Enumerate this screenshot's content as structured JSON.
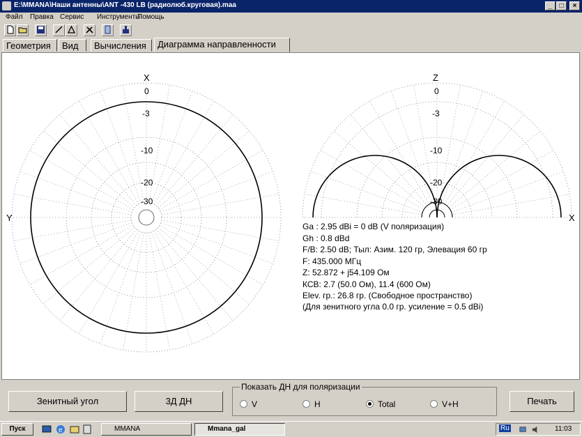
{
  "window": {
    "title": "E:\\MMANA\\Наши антенны\\ANT -430 LB (радиолюб.круговая).maa",
    "minimize_glyph": "_",
    "maximize_glyph": "□",
    "close_glyph": "×"
  },
  "menu": [
    "Файл",
    "Правка",
    "Сервис",
    "Инструменты",
    "Помощь"
  ],
  "toolbar_icons": [
    "new-file-icon",
    "open-folder-icon",
    "save-icon",
    "draw-line-icon",
    "triangle-icon",
    "tools-icon",
    "document-icon",
    "run-icon"
  ],
  "tabs": [
    "Геометрия",
    "Вид",
    "Вычисления",
    "Диаграмма направленности"
  ],
  "active_tab": "Диаграмма направленности",
  "diagram": {
    "azimuth": {
      "axis_top": "X",
      "axis_left": "Y",
      "scale_labels": [
        "0",
        "-3",
        "-10",
        "-20",
        "-30"
      ]
    },
    "elevation": {
      "axis_top": "Z",
      "axis_right": "X",
      "scale_labels": [
        "0",
        "-3",
        "-10",
        "-20",
        "-30"
      ]
    },
    "info": [
      "Ga : 2.95 dBi = 0 dB  (V поляризация)",
      "Gh : 0.8 dBd",
      "F/B: 2.50 dB; Тыл: Азим. 120 гр, Элевация 60 гр",
      "F: 435.000 МГц",
      "Z: 52.872 + j54.109 Ом",
      "КСВ: 2.7 (50.0 Ом), 11.4 (600 Ом)",
      "Elev. гр.: 26.8 гр. (Свободное пространство)",
      "(Для зенитного угла 0.0 гр. усиление = 0.5 dBi)"
    ]
  },
  "bottom": {
    "zenith_button": "Зенитный угол",
    "button_3d": "3Д  ДН",
    "polarization_group": "Показать ДН для поляризации",
    "radios": [
      {
        "label": "V",
        "checked": false
      },
      {
        "label": "H",
        "checked": false
      },
      {
        "label": "Total",
        "checked": true
      },
      {
        "label": "V+H",
        "checked": false
      }
    ],
    "print_button": "Печать"
  },
  "taskbar": {
    "start": "Пуск",
    "tasks": [
      {
        "label": "MMANA",
        "active": false
      },
      {
        "label": "Mmana_gal",
        "active": true
      }
    ],
    "language": "Ru",
    "clock": "11:03"
  }
}
